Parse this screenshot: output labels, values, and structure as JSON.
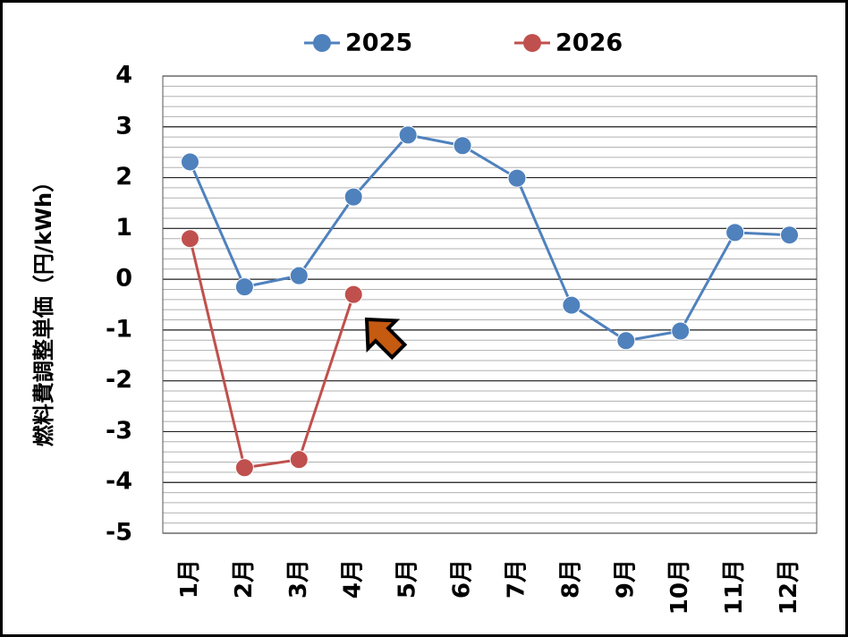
{
  "chart_data": {
    "type": "line",
    "y_label": "燃料費調整単価（円/kWh）",
    "categories": [
      "1月",
      "2月",
      "3月",
      "4月",
      "5月",
      "6月",
      "7月",
      "8月",
      "9月",
      "10月",
      "11月",
      "12月"
    ],
    "series": [
      {
        "name": "2025",
        "color": "#4f81bd",
        "values": [
          2.31,
          -0.15,
          0.07,
          1.62,
          2.84,
          2.63,
          1.99,
          -0.51,
          -1.21,
          -1.02,
          0.92,
          0.87
        ]
      },
      {
        "name": "2026",
        "color": "#c0504d",
        "values": [
          0.8,
          -3.71,
          -3.55,
          -0.3,
          null,
          null,
          null,
          null,
          null,
          null,
          null,
          null
        ]
      }
    ],
    "ylim": [
      -5,
      4
    ],
    "yticks": [
      -5,
      -4,
      -3,
      -2,
      -1,
      0,
      1,
      2,
      3,
      4
    ],
    "grid": true,
    "minor_grid_step": 0.2,
    "legend": "top"
  }
}
